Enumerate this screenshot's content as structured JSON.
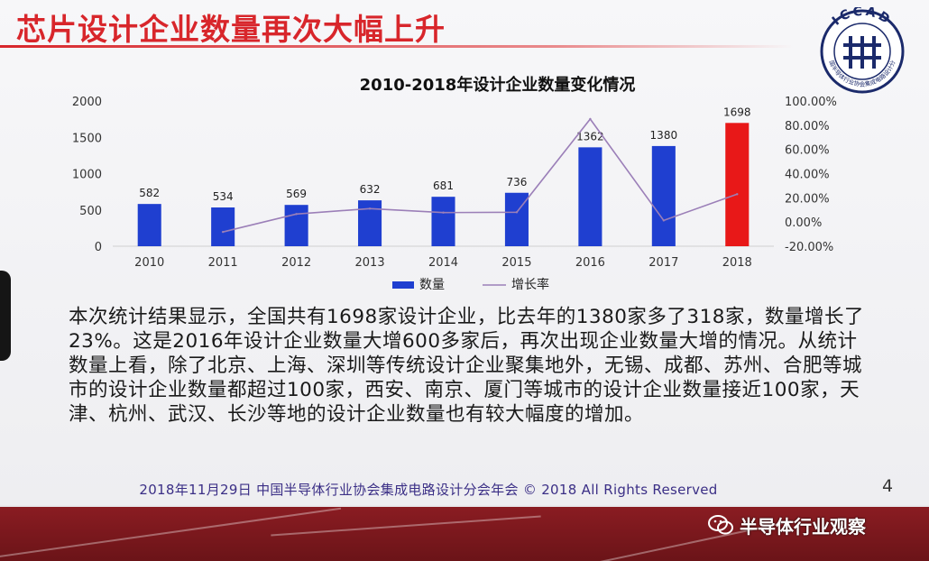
{
  "slide": {
    "title": "芯片设计企业数量再次大幅上升",
    "logo_text": "ICCAD",
    "logo_ring_text": "中国半导体行业协会集成电路设计分会",
    "body": "本次统计结果显示，全国共有1698家设计企业，比去年的1380家多了318家，数量增长了23%。这是2016年设计企业数量大增600多家后，再次出现企业数量大增的情况。从统计数量上看，除了北京、上海、深圳等传统设计企业聚集地外，无锡、成都、苏州、合肥等城市的设计企业数量都超过100家，西安、南京、厦门等城市的设计企业数量接近100家，天津、杭州、武汉、长沙等地的设计企业数量也有较大幅度的增加。",
    "footer": "2018年11月29日   中国半导体行业协会集成电路设计分会年会 © 2018 All Rights Reserved",
    "page_number": "4"
  },
  "watermark": {
    "text": "半导体行业观察",
    "icon": "wechat-icon"
  },
  "chart_data": {
    "type": "bar",
    "title": "2010-2018年设计企业数量变化情况",
    "categories": [
      "2010",
      "2011",
      "2012",
      "2013",
      "2014",
      "2015",
      "2016",
      "2017",
      "2018"
    ],
    "series": [
      {
        "name": "数量",
        "type": "bar",
        "axis": "left",
        "values": [
          582,
          534,
          569,
          632,
          681,
          736,
          1362,
          1380,
          1698
        ],
        "color": "#1f3fd0",
        "highlight": {
          "index": 8,
          "color": "#e81818"
        }
      },
      {
        "name": "增长率",
        "type": "line",
        "axis": "right",
        "values": [
          null,
          -8.2,
          6.6,
          11.1,
          7.8,
          8.1,
          85.1,
          1.3,
          23.0
        ],
        "color": "#9b7fb8"
      }
    ],
    "ylim": [
      0,
      2000
    ],
    "yticks": [
      "0",
      "500",
      "1000",
      "1500",
      "2000"
    ],
    "y2lim": [
      -20,
      100
    ],
    "y2ticks": [
      "-20.00%",
      "0.00%",
      "20.00%",
      "40.00%",
      "60.00%",
      "80.00%",
      "100.00%"
    ],
    "data_labels": [
      "582",
      "534",
      "569",
      "632",
      "681",
      "736",
      "1362",
      "1380",
      "1698"
    ],
    "legend": {
      "placement": "bottom",
      "entries": [
        "数量",
        "增长率"
      ]
    },
    "grid": false
  }
}
